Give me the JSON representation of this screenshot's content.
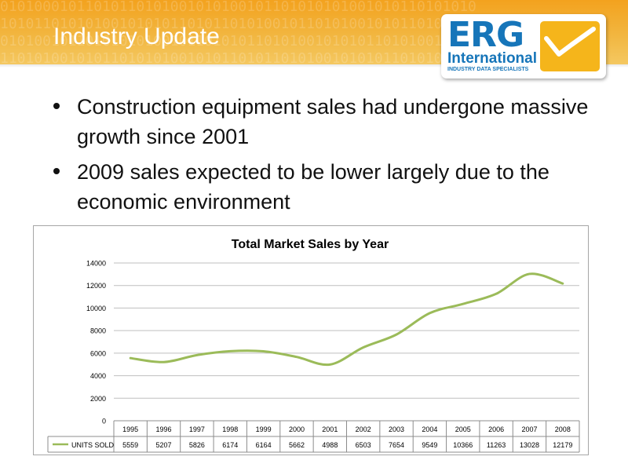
{
  "slide": {
    "title": "Industry Update",
    "bullets": [
      "Construction equipment sales had undergone massive growth since 2001",
      "2009 sales expected to be lower largely due to the economic environment"
    ]
  },
  "logo": {
    "name": "ERG",
    "subtitle": "International",
    "tagline": "INDUSTRY DATA SPECIALISTS"
  },
  "colors": {
    "banner": "#f3a21e",
    "logo_blue": "#1675b9",
    "logo_yellow": "#f5b51b",
    "series": "#9bbb59"
  },
  "chart_data": {
    "type": "line",
    "title": "Total Market Sales by Year",
    "x": [
      "1995",
      "1996",
      "1997",
      "1998",
      "1999",
      "2000",
      "2001",
      "2002",
      "2003",
      "2004",
      "2005",
      "2006",
      "2007",
      "2008"
    ],
    "series": [
      {
        "name": "UNITS SOLD",
        "values": [
          5559,
          5207,
          5826,
          6174,
          6164,
          5662,
          4988,
          6503,
          7654,
          9549,
          10366,
          11263,
          13028,
          12179
        ]
      }
    ],
    "ylim": [
      0,
      14000
    ],
    "yticks": [
      0,
      2000,
      4000,
      6000,
      8000,
      10000,
      12000,
      14000
    ],
    "grid": true,
    "legend": "data-table",
    "xlabel": "",
    "ylabel": ""
  }
}
